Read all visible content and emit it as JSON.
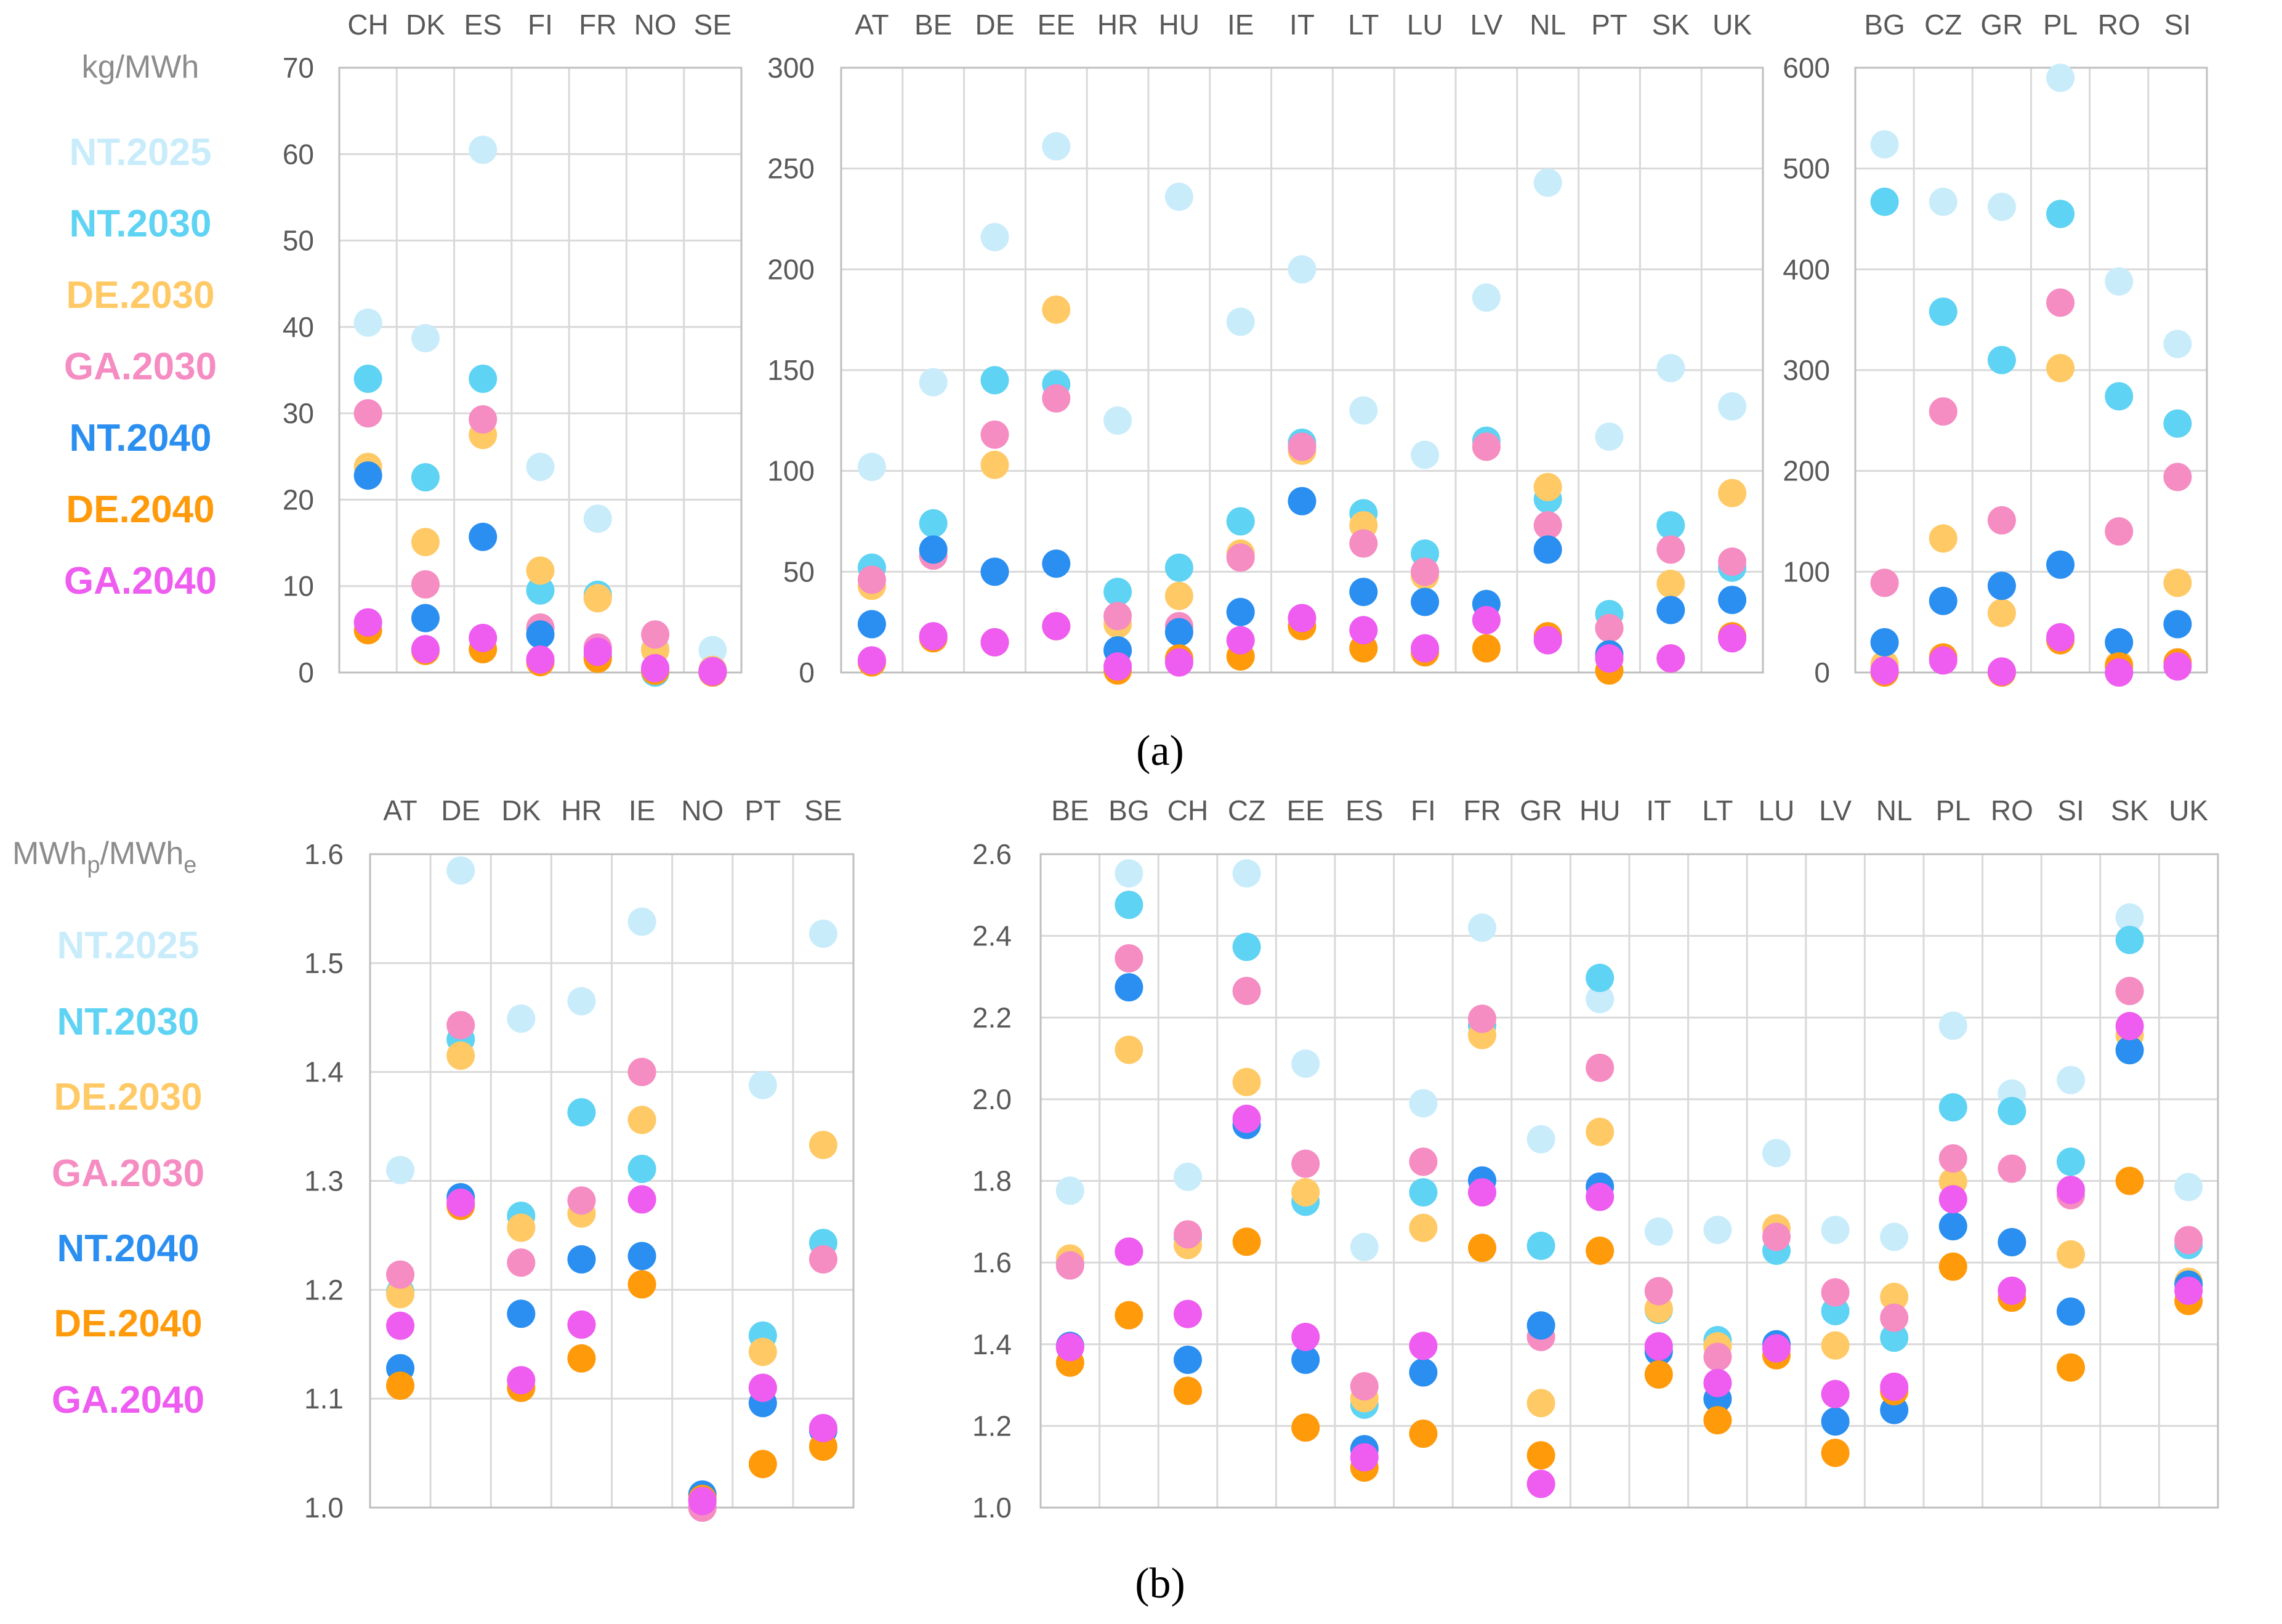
{
  "legend": [
    "NT.2025",
    "NT.2030",
    "DE.2030",
    "GA.2030",
    "NT.2040",
    "DE.2040",
    "GA.2040"
  ],
  "colors": {
    "NT.2025": "#c9ecfb",
    "NT.2030": "#5fd3f3",
    "DE.2030": "#ffc966",
    "GA.2030": "#f58cc2",
    "NT.2040": "#2a8ff0",
    "DE.2040": "#ff9a0a",
    "GA.2040": "#ee5cf0"
  },
  "panels": {
    "a": {
      "label": "(a)",
      "unit": "kg/MWh"
    },
    "b": {
      "label": "(b)",
      "unit_base": "MWh",
      "unit_sub1": "p",
      "unit_sep": "/MWh",
      "unit_sub2": "e"
    }
  },
  "chart_data": [
    {
      "type": "scatter",
      "id": "a1",
      "title": "",
      "ylabel": "kg/MWh",
      "ylim": [
        0,
        70
      ],
      "yticks": [
        0,
        10,
        20,
        30,
        40,
        50,
        60,
        70
      ],
      "categories": [
        "CH",
        "DK",
        "ES",
        "FI",
        "FR",
        "NO",
        "SE"
      ],
      "series": [
        {
          "name": "NT.2025",
          "values": [
            40.5,
            38.7,
            60.5,
            23.8,
            17.8,
            2.8,
            2.6
          ]
        },
        {
          "name": "NT.2030",
          "values": [
            34.0,
            22.6,
            34.0,
            9.5,
            9.0,
            0.0,
            0.0
          ]
        },
        {
          "name": "DE.2030",
          "values": [
            23.8,
            15.1,
            27.5,
            11.8,
            8.6,
            2.6,
            0.3
          ]
        },
        {
          "name": "GA.2030",
          "values": [
            30.0,
            10.2,
            29.3,
            5.2,
            2.9,
            4.4,
            0.2
          ]
        },
        {
          "name": "NT.2040",
          "values": [
            22.8,
            6.3,
            15.7,
            4.4,
            1.8,
            0.3,
            0.1
          ]
        },
        {
          "name": "DE.2040",
          "values": [
            4.9,
            2.5,
            2.7,
            1.2,
            1.6,
            0.2,
            0.0
          ]
        },
        {
          "name": "GA.2040",
          "values": [
            5.8,
            2.7,
            4.0,
            1.5,
            2.4,
            0.5,
            0.1
          ]
        }
      ]
    },
    {
      "type": "scatter",
      "id": "a2",
      "title": "",
      "ylim": [
        0,
        300
      ],
      "yticks": [
        0,
        50,
        100,
        150,
        200,
        250,
        300
      ],
      "categories": [
        "AT",
        "BE",
        "DE",
        "EE",
        "HR",
        "HU",
        "IE",
        "IT",
        "LT",
        "LU",
        "LV",
        "NL",
        "PT",
        "SK",
        "UK"
      ],
      "series": [
        {
          "name": "NT.2025",
          "values": [
            102,
            144,
            216,
            261,
            125,
            236,
            174,
            200,
            130,
            108,
            186,
            243,
            117,
            151,
            132
          ]
        },
        {
          "name": "NT.2030",
          "values": [
            52,
            74,
            145,
            143,
            40,
            52,
            75,
            114,
            79,
            59,
            115,
            86,
            29,
            73,
            52
          ]
        },
        {
          "name": "DE.2030",
          "values": [
            43,
            58,
            103,
            180,
            24,
            38,
            59,
            110,
            73,
            48,
            112,
            92,
            22,
            44,
            89
          ]
        },
        {
          "name": "GA.2030",
          "values": [
            46,
            58,
            118,
            136,
            28,
            23,
            57,
            112,
            64,
            50,
            112,
            73,
            22,
            61,
            55
          ]
        },
        {
          "name": "NT.2040",
          "values": [
            24,
            61,
            50,
            54,
            11,
            20,
            30,
            85,
            40,
            35,
            34,
            61,
            9,
            31,
            36
          ]
        },
        {
          "name": "DE.2040",
          "values": [
            5,
            17,
            15,
            23,
            1,
            7,
            8,
            23,
            12,
            10,
            12,
            18,
            1,
            7,
            18
          ]
        },
        {
          "name": "GA.2040",
          "values": [
            6,
            18,
            15,
            23,
            3,
            5,
            16,
            27,
            21,
            12,
            26,
            16,
            7,
            7,
            17
          ]
        }
      ]
    },
    {
      "type": "scatter",
      "id": "a3",
      "title": "",
      "ylim": [
        0,
        600
      ],
      "yticks": [
        0,
        100,
        200,
        300,
        400,
        500,
        600
      ],
      "categories": [
        "BG",
        "CZ",
        "GR",
        "PL",
        "RO",
        "SI"
      ],
      "series": [
        {
          "name": "NT.2025",
          "values": [
            524,
            467,
            462,
            590,
            388,
            326
          ]
        },
        {
          "name": "NT.2030",
          "values": [
            467,
            358,
            310,
            455,
            274,
            247
          ]
        },
        {
          "name": "DE.2030",
          "values": [
            8,
            133,
            59,
            302,
            8,
            89
          ]
        },
        {
          "name": "GA.2030",
          "values": [
            89,
            259,
            151,
            367,
            140,
            194
          ]
        },
        {
          "name": "NT.2040",
          "values": [
            30,
            71,
            86,
            107,
            30,
            48
          ]
        },
        {
          "name": "DE.2040",
          "values": [
            0,
            15,
            0,
            32,
            6,
            10
          ]
        },
        {
          "name": "GA.2040",
          "values": [
            2,
            12,
            1,
            35,
            0,
            6
          ]
        }
      ]
    },
    {
      "type": "scatter",
      "id": "b1",
      "title": "",
      "ylim": [
        1.0,
        1.6
      ],
      "yticks": [
        1.0,
        1.1,
        1.2,
        1.3,
        1.4,
        1.5,
        1.6
      ],
      "categories": [
        "AT",
        "DE",
        "DK",
        "HR",
        "IE",
        "NO",
        "PT",
        "SE"
      ],
      "series": [
        {
          "name": "NT.2025",
          "values": [
            1.31,
            1.585,
            1.449,
            1.465,
            1.538,
            1.0,
            1.388,
            1.527
          ]
        },
        {
          "name": "NT.2030",
          "values": [
            1.198,
            1.43,
            1.268,
            1.363,
            1.311,
            1.0,
            1.158,
            1.243
          ]
        },
        {
          "name": "DE.2030",
          "values": [
            1.196,
            1.415,
            1.257,
            1.27,
            1.356,
            1.0,
            1.143,
            1.333
          ]
        },
        {
          "name": "GA.2030",
          "values": [
            1.214,
            1.443,
            1.225,
            1.282,
            1.4,
            1.0,
            1.11,
            1.228
          ]
        },
        {
          "name": "NT.2040",
          "values": [
            1.128,
            1.285,
            1.178,
            1.228,
            1.231,
            1.012,
            1.096,
            1.071
          ]
        },
        {
          "name": "DE.2040",
          "values": [
            1.112,
            1.277,
            1.11,
            1.137,
            1.205,
            1.008,
            1.04,
            1.056
          ]
        },
        {
          "name": "GA.2040",
          "values": [
            1.167,
            1.28,
            1.117,
            1.168,
            1.283,
            1.006,
            1.11,
            1.073
          ]
        }
      ]
    },
    {
      "type": "scatter",
      "id": "b2",
      "title": "",
      "ylim": [
        1.0,
        2.6
      ],
      "yticks": [
        1.0,
        1.2,
        1.4,
        1.6,
        1.8,
        2.0,
        2.2,
        2.4,
        2.6
      ],
      "categories": [
        "BE",
        "BG",
        "CH",
        "CZ",
        "EE",
        "ES",
        "FI",
        "FR",
        "GR",
        "HU",
        "IT",
        "LT",
        "LU",
        "LV",
        "NL",
        "PL",
        "RO",
        "SI",
        "SK",
        "UK"
      ],
      "series": [
        {
          "name": "NT.2025",
          "values": [
            1.776,
            2.553,
            1.81,
            2.553,
            2.087,
            1.638,
            1.99,
            2.42,
            1.902,
            2.245,
            1.676,
            1.68,
            1.868,
            1.68,
            1.663,
            2.18,
            2.014,
            2.047,
            2.445,
            1.785
          ]
        },
        {
          "name": "NT.2030",
          "values": [
            1.6,
            2.476,
            1.66,
            2.373,
            1.749,
            1.252,
            1.772,
            2.18,
            1.641,
            2.297,
            1.484,
            1.41,
            1.629,
            1.481,
            1.416,
            1.98,
            1.971,
            1.847,
            2.39,
            1.643
          ]
        },
        {
          "name": "DE.2030",
          "values": [
            1.61,
            2.121,
            1.643,
            2.042,
            1.772,
            1.268,
            1.685,
            2.157,
            1.256,
            1.92,
            1.487,
            1.395,
            1.684,
            1.397,
            1.516,
            1.798,
            1.65,
            1.62,
            2.157,
            1.553
          ]
        },
        {
          "name": "GA.2030",
          "values": [
            1.593,
            2.345,
            1.669,
            2.265,
            1.842,
            1.297,
            1.847,
            2.197,
            1.418,
            2.077,
            1.53,
            1.369,
            1.663,
            1.527,
            1.465,
            1.855,
            1.83,
            1.765,
            2.265,
            1.655
          ]
        },
        {
          "name": "NT.2040",
          "values": [
            1.396,
            2.274,
            1.362,
            1.937,
            1.362,
            1.143,
            1.331,
            1.801,
            1.446,
            1.786,
            1.382,
            1.266,
            1.4,
            1.211,
            1.239,
            1.689,
            1.65,
            1.48,
            2.12,
            1.546
          ]
        },
        {
          "name": "DE.2040",
          "values": [
            1.355,
            1.471,
            1.286,
            1.651,
            1.196,
            1.098,
            1.181,
            1.636,
            1.128,
            1.629,
            1.326,
            1.214,
            1.373,
            1.134,
            1.285,
            1.59,
            1.514,
            1.343,
            1.8,
            1.506
          ]
        },
        {
          "name": "GA.2040",
          "values": [
            1.393,
            1.627,
            1.474,
            1.952,
            1.418,
            1.123,
            1.396,
            1.772,
            1.058,
            1.761,
            1.395,
            1.305,
            1.39,
            1.278,
            1.296,
            1.755,
            1.531,
            1.778,
            2.179,
            1.531
          ]
        }
      ]
    }
  ]
}
